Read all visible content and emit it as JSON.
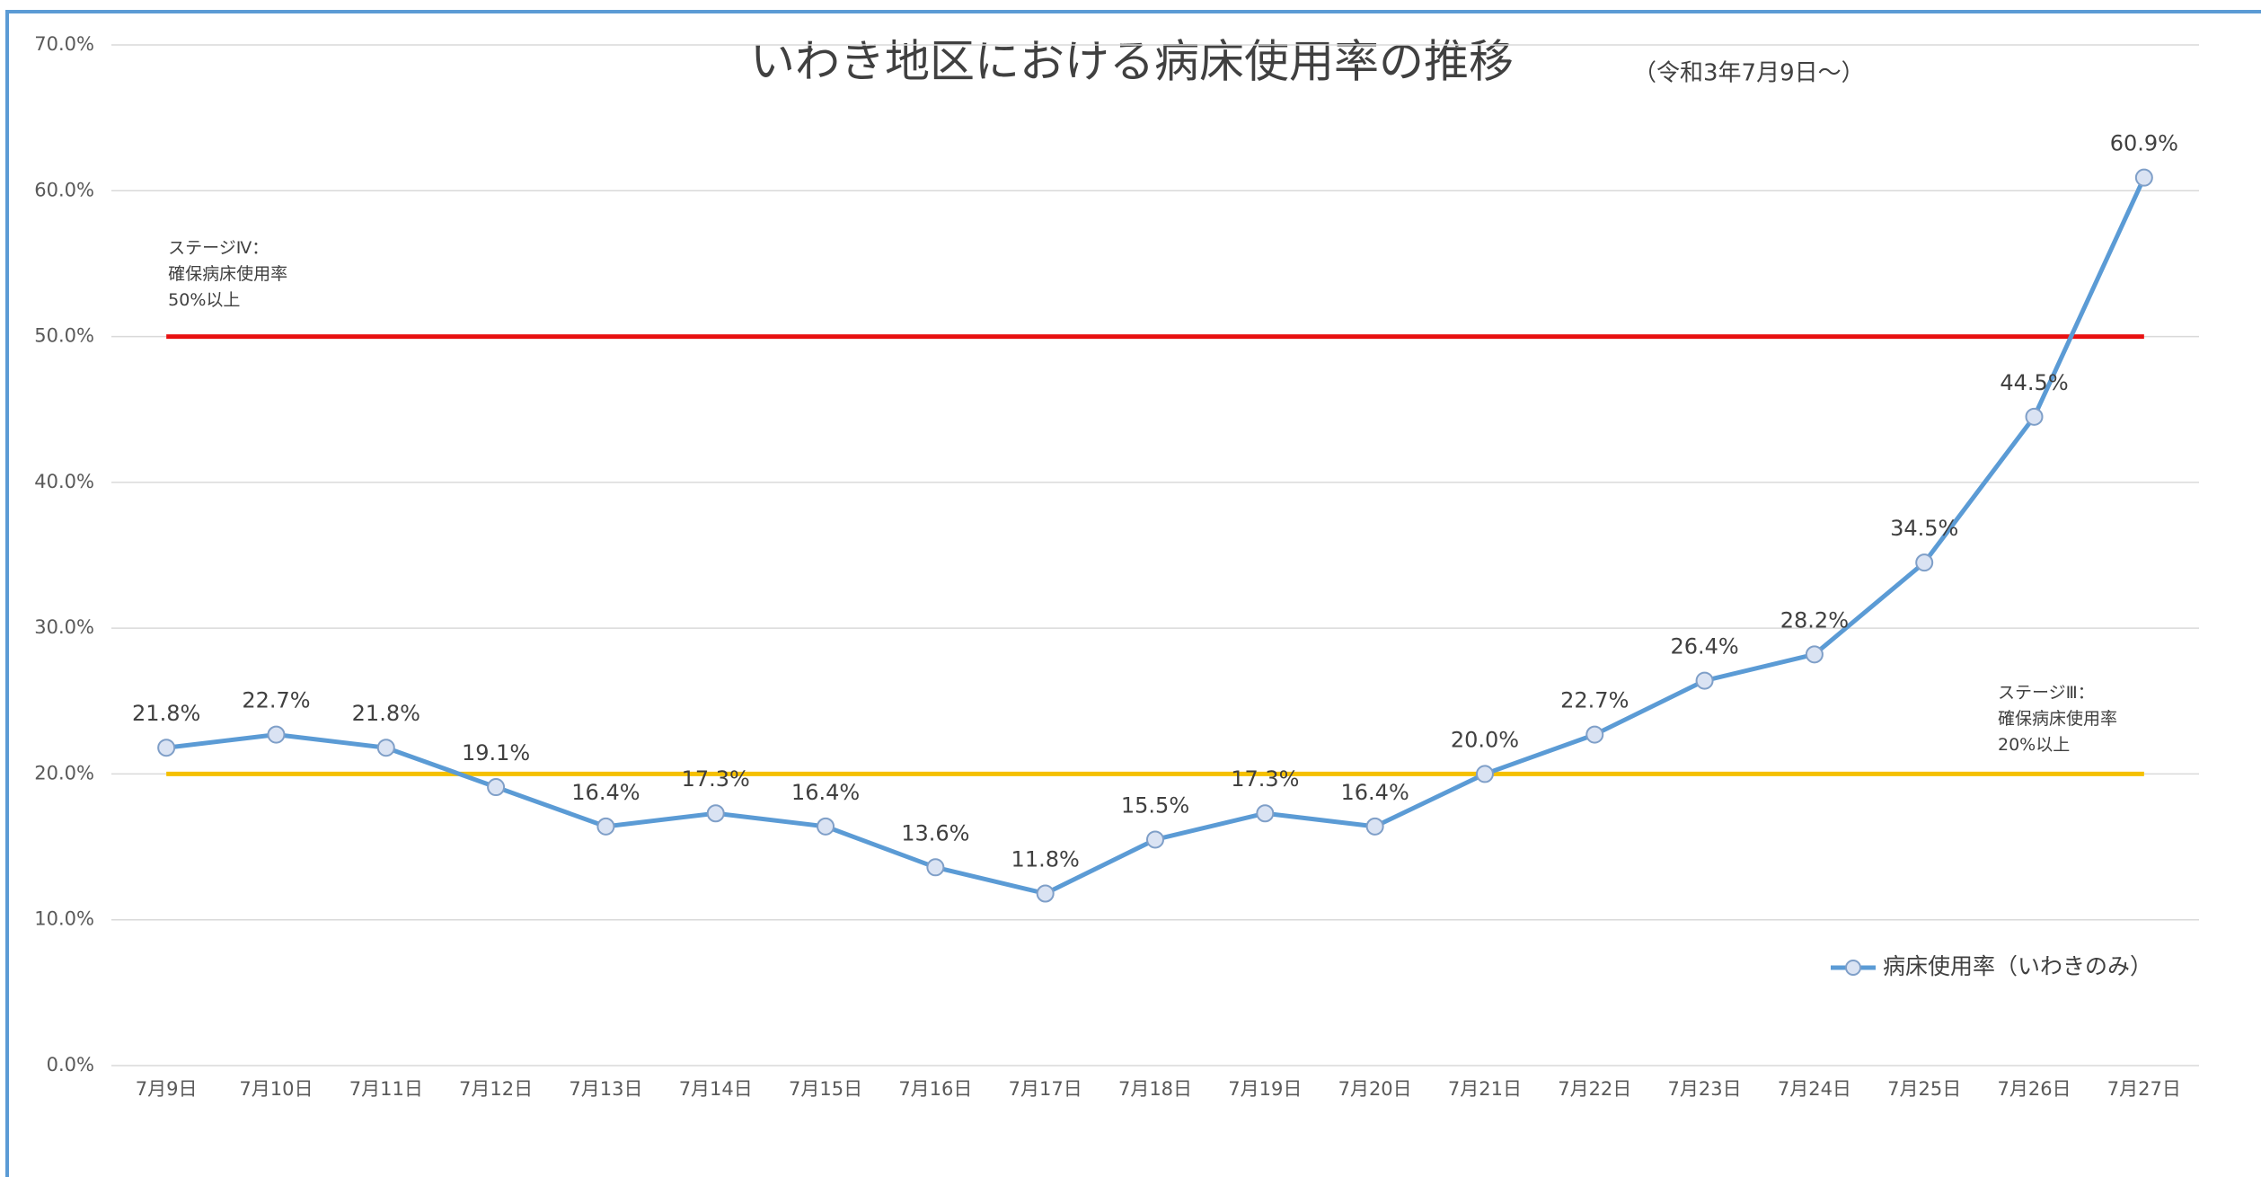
{
  "chart_data": {
    "type": "line",
    "title": "いわき地区における病床使用率の推移",
    "subtitle": "（令和3年7月9日～）",
    "categories": [
      "7月9日",
      "7月10日",
      "7月11日",
      "7月12日",
      "7月13日",
      "7月14日",
      "7月15日",
      "7月16日",
      "7月17日",
      "7月18日",
      "7月19日",
      "7月20日",
      "7月21日",
      "7月22日",
      "7月23日",
      "7月24日",
      "7月25日",
      "7月26日",
      "7月27日"
    ],
    "series": [
      {
        "name": "病床使用率（いわきのみ）",
        "color": "#5b9bd5",
        "values": [
          21.8,
          22.7,
          21.8,
          19.1,
          16.4,
          17.3,
          16.4,
          13.6,
          11.8,
          15.5,
          17.3,
          16.4,
          20.0,
          22.7,
          26.4,
          28.2,
          34.5,
          44.5,
          60.9
        ],
        "value_labels": [
          "21.8%",
          "22.7%",
          "21.8%",
          "19.1%",
          "16.4%",
          "17.3%",
          "16.4%",
          "13.6%",
          "11.8%",
          "15.5%",
          "17.3%",
          "16.4%",
          "20.0%",
          "22.7%",
          "26.4%",
          "28.2%",
          "34.5%",
          "44.5%",
          "60.9%"
        ]
      }
    ],
    "ylim": [
      0,
      70
    ],
    "yticks": [
      {
        "value": 0,
        "label": "0.0%"
      },
      {
        "value": 10,
        "label": "10.0%"
      },
      {
        "value": 20,
        "label": "20.0%"
      },
      {
        "value": 30,
        "label": "30.0%"
      },
      {
        "value": 40,
        "label": "40.0%"
      },
      {
        "value": 50,
        "label": "50.0%"
      },
      {
        "value": 60,
        "label": "60.0%"
      },
      {
        "value": 70,
        "label": "70.0%"
      }
    ],
    "grid": true,
    "legend": "right",
    "reference_lines": [
      {
        "value": 50,
        "color": "#e81010",
        "label": [
          "ステージⅣ：",
          "確保病床使用率",
          "50%以上"
        ],
        "label_side": "left"
      },
      {
        "value": 20,
        "color": "#f5c000",
        "label": [
          "ステージⅢ：",
          "確保病床使用率",
          "20%以上"
        ],
        "label_side": "right"
      }
    ]
  }
}
